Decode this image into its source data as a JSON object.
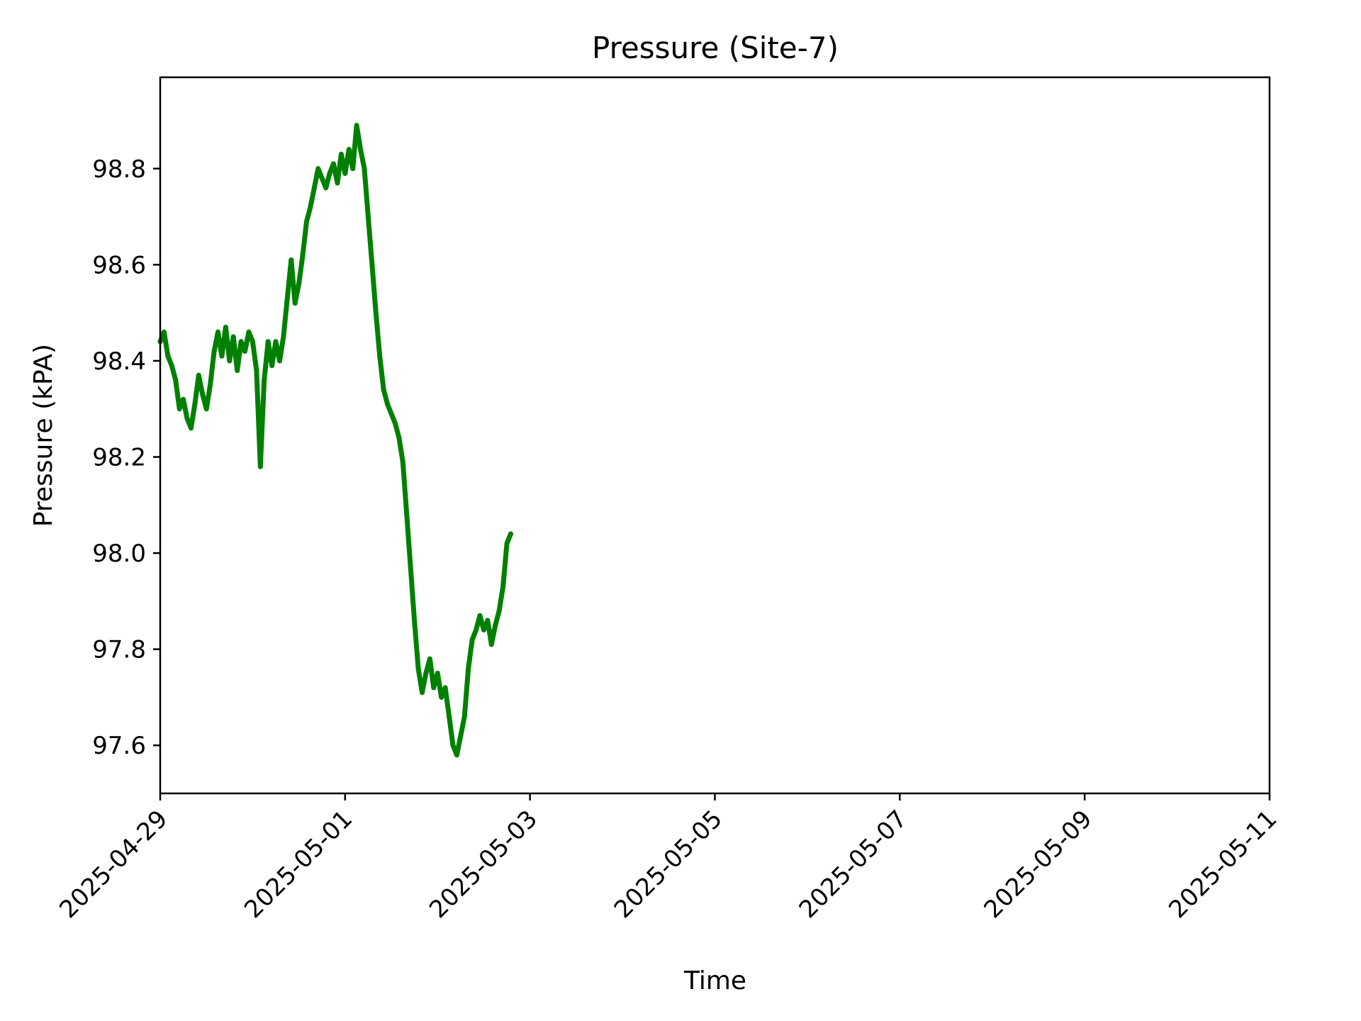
{
  "chart_data": {
    "type": "line",
    "title": "Pressure (Site-7)",
    "xlabel": "Time",
    "ylabel": "Pressure (kPA)",
    "x_axis": {
      "kind": "date",
      "range": [
        "2025-04-29",
        "2025-05-11"
      ],
      "ticks": [
        "2025-04-29",
        "2025-05-01",
        "2025-05-03",
        "2025-05-05",
        "2025-05-07",
        "2025-05-09",
        "2025-05-11"
      ]
    },
    "y_axis": {
      "range": [
        97.5,
        98.99
      ],
      "ticks": [
        97.6,
        97.8,
        98.0,
        98.2,
        98.4,
        98.6,
        98.8
      ],
      "tick_labels": [
        "97.6",
        "97.8",
        "98.0",
        "98.2",
        "98.4",
        "98.6",
        "98.8"
      ]
    },
    "grid": false,
    "legend": "none",
    "series": [
      {
        "color": "#008000",
        "points": [
          [
            "2025-04-29T00:00",
            98.44
          ],
          [
            "2025-04-29T01:00",
            98.46
          ],
          [
            "2025-04-29T02:00",
            98.41
          ],
          [
            "2025-04-29T03:00",
            98.39
          ],
          [
            "2025-04-29T04:00",
            98.36
          ],
          [
            "2025-04-29T05:00",
            98.3
          ],
          [
            "2025-04-29T06:00",
            98.32
          ],
          [
            "2025-04-29T07:00",
            98.28
          ],
          [
            "2025-04-29T08:00",
            98.26
          ],
          [
            "2025-04-29T09:00",
            98.31
          ],
          [
            "2025-04-29T10:00",
            98.37
          ],
          [
            "2025-04-29T11:00",
            98.33
          ],
          [
            "2025-04-29T12:00",
            98.3
          ],
          [
            "2025-04-29T13:00",
            98.35
          ],
          [
            "2025-04-29T14:00",
            98.42
          ],
          [
            "2025-04-29T15:00",
            98.46
          ],
          [
            "2025-04-29T16:00",
            98.41
          ],
          [
            "2025-04-29T17:00",
            98.47
          ],
          [
            "2025-04-29T18:00",
            98.4
          ],
          [
            "2025-04-29T19:00",
            98.45
          ],
          [
            "2025-04-29T20:00",
            98.38
          ],
          [
            "2025-04-29T21:00",
            98.44
          ],
          [
            "2025-04-29T22:00",
            98.42
          ],
          [
            "2025-04-29T23:00",
            98.46
          ],
          [
            "2025-04-30T00:00",
            98.44
          ],
          [
            "2025-04-30T01:00",
            98.38
          ],
          [
            "2025-04-30T02:00",
            98.18
          ],
          [
            "2025-04-30T03:00",
            98.36
          ],
          [
            "2025-04-30T04:00",
            98.44
          ],
          [
            "2025-04-30T05:00",
            98.39
          ],
          [
            "2025-04-30T06:00",
            98.44
          ],
          [
            "2025-04-30T07:00",
            98.4
          ],
          [
            "2025-04-30T08:00",
            98.45
          ],
          [
            "2025-04-30T09:00",
            98.53
          ],
          [
            "2025-04-30T10:00",
            98.61
          ],
          [
            "2025-04-30T11:00",
            98.52
          ],
          [
            "2025-04-30T12:00",
            98.56
          ],
          [
            "2025-04-30T13:00",
            98.62
          ],
          [
            "2025-04-30T14:00",
            98.69
          ],
          [
            "2025-04-30T15:00",
            98.72
          ],
          [
            "2025-04-30T16:00",
            98.76
          ],
          [
            "2025-04-30T17:00",
            98.8
          ],
          [
            "2025-04-30T18:00",
            98.78
          ],
          [
            "2025-04-30T19:00",
            98.76
          ],
          [
            "2025-04-30T20:00",
            98.79
          ],
          [
            "2025-04-30T21:00",
            98.81
          ],
          [
            "2025-04-30T22:00",
            98.77
          ],
          [
            "2025-04-30T23:00",
            98.83
          ],
          [
            "2025-05-01T00:00",
            98.79
          ],
          [
            "2025-05-01T01:00",
            98.84
          ],
          [
            "2025-05-01T02:00",
            98.8
          ],
          [
            "2025-05-01T03:00",
            98.89
          ],
          [
            "2025-05-01T04:00",
            98.84
          ],
          [
            "2025-05-01T05:00",
            98.8
          ],
          [
            "2025-05-01T06:00",
            98.7
          ],
          [
            "2025-05-01T07:00",
            98.6
          ],
          [
            "2025-05-01T08:00",
            98.5
          ],
          [
            "2025-05-01T09:00",
            98.41
          ],
          [
            "2025-05-01T10:00",
            98.34
          ],
          [
            "2025-05-01T11:00",
            98.31
          ],
          [
            "2025-05-01T12:00",
            98.29
          ],
          [
            "2025-05-01T13:00",
            98.27
          ],
          [
            "2025-05-01T14:00",
            98.24
          ],
          [
            "2025-05-01T15:00",
            98.19
          ],
          [
            "2025-05-01T16:00",
            98.08
          ],
          [
            "2025-05-01T17:00",
            97.97
          ],
          [
            "2025-05-01T18:00",
            97.86
          ],
          [
            "2025-05-01T19:00",
            97.76
          ],
          [
            "2025-05-01T20:00",
            97.71
          ],
          [
            "2025-05-01T21:00",
            97.75
          ],
          [
            "2025-05-01T22:00",
            97.78
          ],
          [
            "2025-05-01T23:00",
            97.72
          ],
          [
            "2025-05-02T00:00",
            97.75
          ],
          [
            "2025-05-02T01:00",
            97.7
          ],
          [
            "2025-05-02T02:00",
            97.72
          ],
          [
            "2025-05-02T03:00",
            97.66
          ],
          [
            "2025-05-02T04:00",
            97.6
          ],
          [
            "2025-05-02T05:00",
            97.58
          ],
          [
            "2025-05-02T06:00",
            97.62
          ],
          [
            "2025-05-02T07:00",
            97.66
          ],
          [
            "2025-05-02T08:00",
            97.76
          ],
          [
            "2025-05-02T09:00",
            97.82
          ],
          [
            "2025-05-02T10:00",
            97.84
          ],
          [
            "2025-05-02T11:00",
            97.87
          ],
          [
            "2025-05-02T12:00",
            97.84
          ],
          [
            "2025-05-02T13:00",
            97.86
          ],
          [
            "2025-05-02T14:00",
            97.81
          ],
          [
            "2025-05-02T15:00",
            97.85
          ],
          [
            "2025-05-02T16:00",
            97.88
          ],
          [
            "2025-05-02T17:00",
            97.93
          ],
          [
            "2025-05-02T18:00",
            98.02
          ],
          [
            "2025-05-02T19:00",
            98.04
          ]
        ]
      }
    ]
  }
}
